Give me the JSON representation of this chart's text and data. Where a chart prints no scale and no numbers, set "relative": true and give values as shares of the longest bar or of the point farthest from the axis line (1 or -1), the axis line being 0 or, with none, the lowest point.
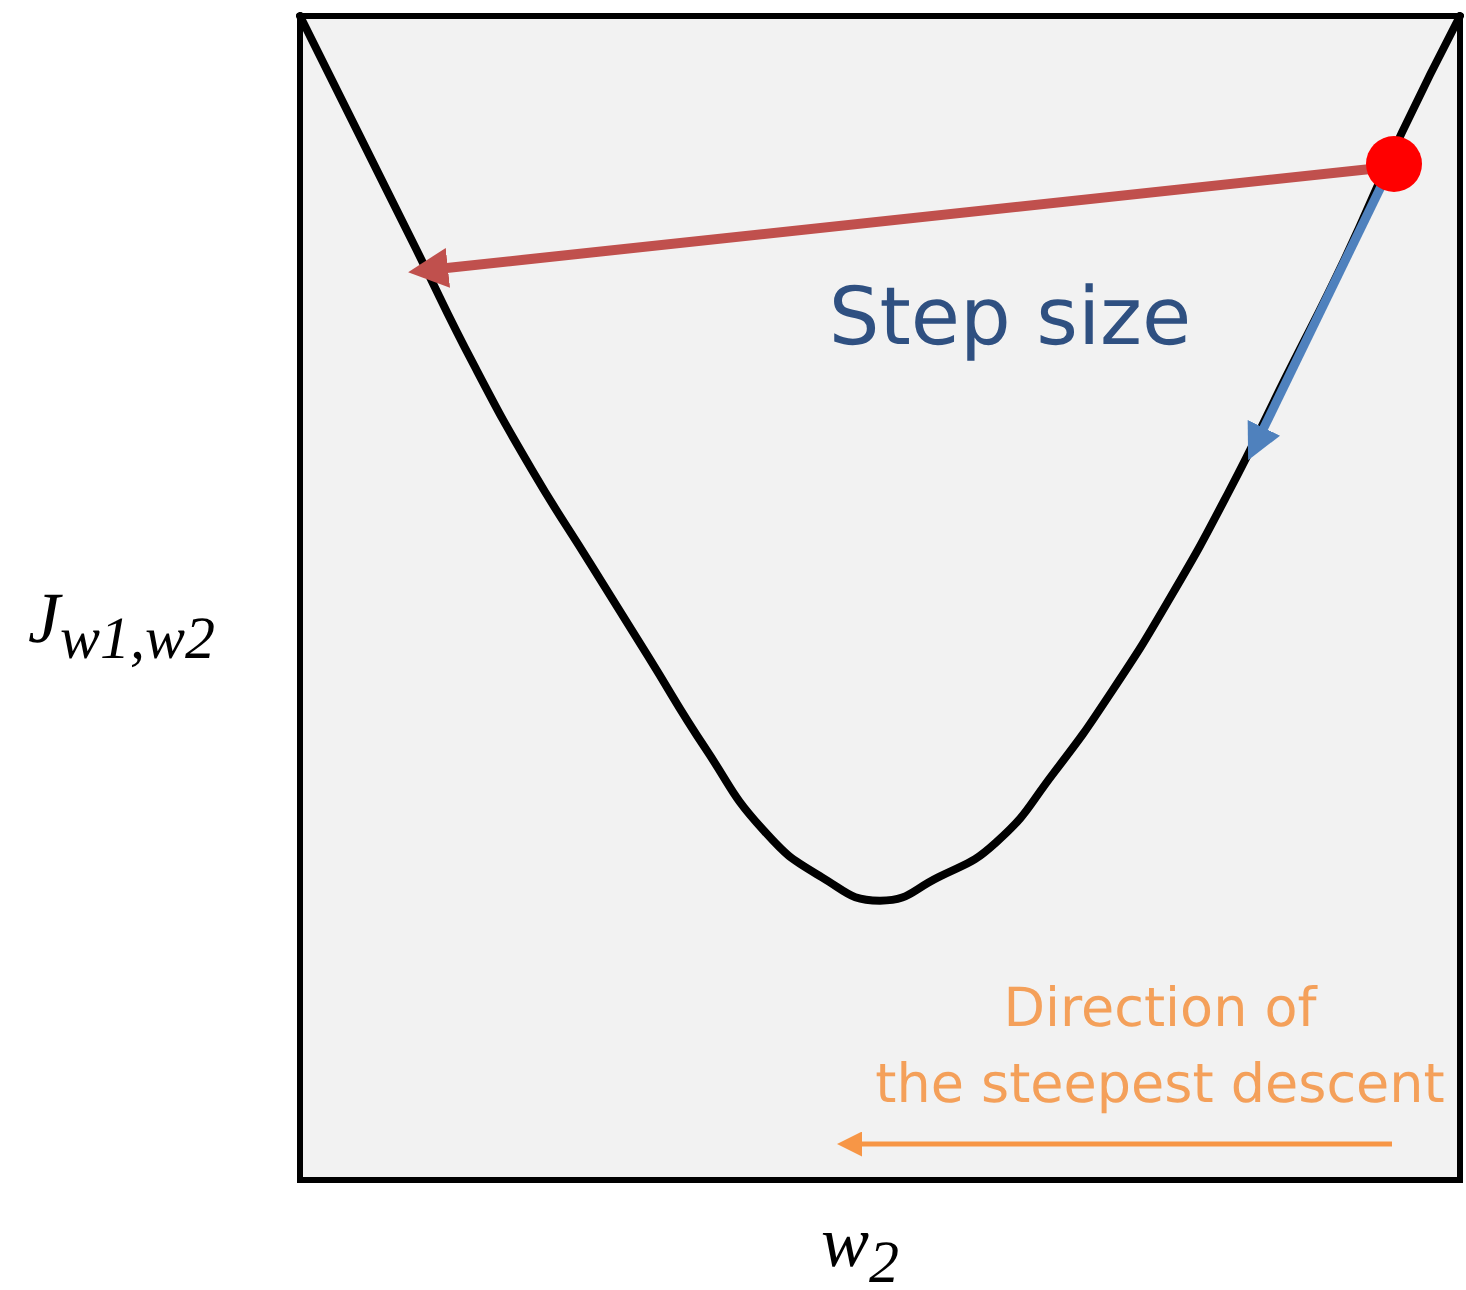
{
  "chart_data": {
    "type": "line",
    "relative": true,
    "xlabel": "w$_{2}$",
    "ylabel": "J$_{w1,w2}$",
    "categories": [
      null,
      null,
      null,
      null,
      null,
      null,
      null,
      null,
      null,
      null,
      null,
      null,
      null,
      null,
      null,
      null,
      null,
      null,
      null,
      null,
      null
    ],
    "series": [
      {
        "color": "#000000",
        "values": [
          1.0,
          0.9,
          0.8,
          0.7,
          0.61,
          0.53,
          0.45,
          0.37,
          0.3,
          0.26,
          0.24,
          0.26,
          0.29,
          0.35,
          0.42,
          0.5,
          0.59,
          0.69,
          0.79,
          0.9,
          1.0
        ]
      }
    ],
    "annotations": [
      "Step size",
      "Direction of\nthe steepest descent"
    ],
    "marker": "none",
    "line_style": "solid",
    "grid": false
  }
}
